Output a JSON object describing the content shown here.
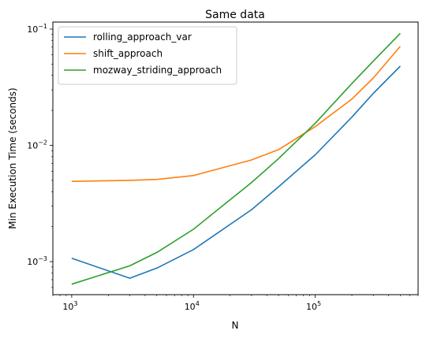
{
  "chart_data": {
    "type": "line",
    "title": "Same data",
    "xlabel": "N",
    "ylabel": "Min Execution Time (seconds)",
    "xscale": "log",
    "yscale": "log",
    "xlim": [
      700,
      700000
    ],
    "ylim": [
      0.00052,
      0.115
    ],
    "x_ticks": [
      {
        "value": 1000,
        "base": "10",
        "exp": "3"
      },
      {
        "value": 10000,
        "base": "10",
        "exp": "4"
      },
      {
        "value": 100000,
        "base": "10",
        "exp": "5"
      }
    ],
    "y_ticks": [
      {
        "value": 0.001,
        "base": "10",
        "exp": "−3"
      },
      {
        "value": 0.01,
        "base": "10",
        "exp": "−2"
      },
      {
        "value": 0.1,
        "base": "10",
        "exp": "−1"
      }
    ],
    "legend_position": "upper-left",
    "grid": false,
    "series": [
      {
        "name": "rolling_approach_var",
        "color": "#1f77b4",
        "x": [
          1000,
          3000,
          5000,
          10000,
          30000,
          50000,
          100000,
          200000,
          300000,
          500000
        ],
        "y": [
          0.00107,
          0.00072,
          0.00088,
          0.00127,
          0.0028,
          0.0044,
          0.0083,
          0.0175,
          0.028,
          0.048
        ]
      },
      {
        "name": "shift_approach",
        "color": "#ff7f0e",
        "x": [
          1000,
          3000,
          5000,
          10000,
          30000,
          50000,
          100000,
          200000,
          300000,
          500000
        ],
        "y": [
          0.0049,
          0.005,
          0.0051,
          0.0055,
          0.0075,
          0.0092,
          0.0145,
          0.025,
          0.038,
          0.071
        ]
      },
      {
        "name": "mozway_striding_approach",
        "color": "#2ca02c",
        "x": [
          1000,
          3000,
          5000,
          10000,
          30000,
          50000,
          100000,
          200000,
          300000,
          500000
        ],
        "y": [
          0.00064,
          0.00092,
          0.0012,
          0.0019,
          0.0048,
          0.0077,
          0.0155,
          0.034,
          0.053,
          0.092
        ]
      }
    ]
  }
}
